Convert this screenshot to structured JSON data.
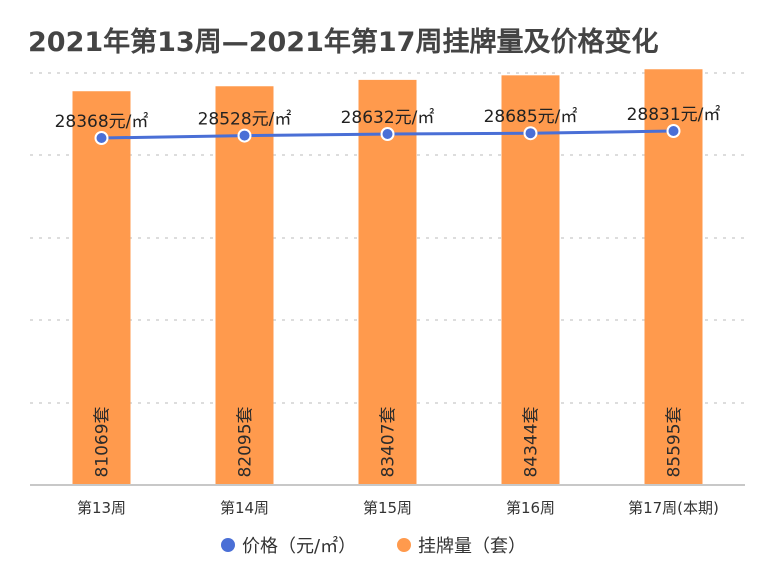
{
  "title": "2021年第13周—2021年第17周挂牌量及价格变化",
  "colors": {
    "bar": "#FF9A4D",
    "line": "#4A6FD6",
    "grid": "#DDDDDD",
    "axis": "#C8C8C8"
  },
  "chart_data": {
    "type": "bar",
    "categories": [
      "第13周",
      "第14周",
      "第15周",
      "第16周",
      "第17周(本期)"
    ],
    "series": [
      {
        "name": "价格（元/㎡）",
        "type": "line",
        "values": [
          28368,
          28528,
          28632,
          28685,
          28831
        ],
        "labels": [
          "28368元/㎡",
          "28528元/㎡",
          "28632元/㎡",
          "28685元/㎡",
          "28831元/㎡"
        ]
      },
      {
        "name": "挂牌量（套）",
        "type": "bar",
        "values": [
          81069,
          82095,
          83407,
          84344,
          85595
        ],
        "labels": [
          "81069套",
          "82095套",
          "83407套",
          "84344套",
          "85595套"
        ]
      }
    ],
    "legend_position": "bottom",
    "grid": true
  }
}
